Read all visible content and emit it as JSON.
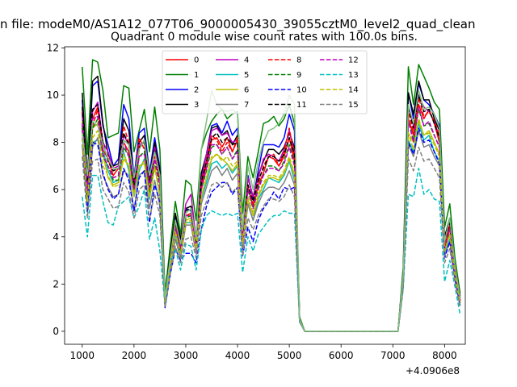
{
  "chart_data": {
    "type": "line",
    "suptitle": "n file: modeM0/AS1A12_077T06_9000005430_39055cztM0_level2_quad_clean",
    "title": "Quadrant 0 module wise count rates with 100.0s bins.",
    "xlabel": "",
    "ylabel": "",
    "x_offset_label": "+4.0906e8",
    "xlim": [
      660,
      8400
    ],
    "ylim": [
      -0.55,
      12.05
    ],
    "xticks": [
      1000,
      2000,
      3000,
      4000,
      5000,
      6000,
      7000,
      8000
    ],
    "yticks": [
      0,
      2,
      4,
      6,
      8,
      10,
      12
    ],
    "grid": false,
    "legend_position": "upper-center",
    "legend_columns": 4,
    "x": [
      1000,
      1100,
      1200,
      1300,
      1400,
      1500,
      1600,
      1700,
      1800,
      1900,
      2000,
      2100,
      2200,
      2300,
      2400,
      2500,
      2600,
      2700,
      2800,
      2900,
      3000,
      3100,
      3200,
      3300,
      3400,
      3500,
      3600,
      3700,
      3800,
      3900,
      4000,
      4100,
      4200,
      4300,
      4400,
      4500,
      4600,
      4700,
      4800,
      4900,
      5000,
      5100,
      5200,
      5300,
      7100,
      7200,
      7300,
      7400,
      7500,
      7600,
      7700,
      7800,
      7900,
      8000,
      8100,
      8200,
      8300
    ],
    "series": [
      {
        "name": "0",
        "color": "#ff0000",
        "dash": "solid",
        "values": [
          9.3,
          6.0,
          9.0,
          9.5,
          7.7,
          7.3,
          6.6,
          6.9,
          8.0,
          7.6,
          6.1,
          7.7,
          8.1,
          6.3,
          7.7,
          6.5,
          1.3,
          3.0,
          4.6,
          3.6,
          4.9,
          5.0,
          3.6,
          6.1,
          7.1,
          8.1,
          8.2,
          7.8,
          8.2,
          7.6,
          8.1,
          4.0,
          6.1,
          5.3,
          6.2,
          6.7,
          7.4,
          7.3,
          7.0,
          7.4,
          8.2,
          7.2,
          0.5,
          0,
          0,
          2.2,
          9.0,
          8.3,
          9.6,
          9.0,
          9.4,
          8.8,
          8.0,
          3.5,
          4.4,
          2.5,
          1.3
        ]
      },
      {
        "name": "1",
        "color": "#008000",
        "dash": "solid",
        "values": [
          11.2,
          7.5,
          11.5,
          11.4,
          10.2,
          8.2,
          8.3,
          8.4,
          10.4,
          10.3,
          7.6,
          8.5,
          9.4,
          7.6,
          9.5,
          7.7,
          1.6,
          3.6,
          5.5,
          4.1,
          6.4,
          6.2,
          4.7,
          7.7,
          8.4,
          8.9,
          9.2,
          9.4,
          9.0,
          9.2,
          9.3,
          5.0,
          7.4,
          6.5,
          7.6,
          8.8,
          8.9,
          9.1,
          8.7,
          9.0,
          9.6,
          8.8,
          0.6,
          0,
          0,
          2.7,
          11.2,
          9.6,
          11.3,
          10.8,
          10.3,
          9.7,
          9.4,
          4.4,
          5.4,
          3.1,
          1.6
        ]
      },
      {
        "name": "2",
        "color": "#0000ff",
        "dash": "solid",
        "values": [
          9.8,
          6.2,
          10.4,
          10.6,
          8.7,
          7.9,
          7.0,
          7.3,
          9.6,
          9.0,
          6.5,
          8.4,
          8.6,
          6.7,
          8.2,
          6.9,
          1.4,
          3.2,
          4.9,
          3.8,
          5.2,
          5.1,
          3.8,
          6.6,
          7.5,
          8.7,
          8.8,
          8.4,
          8.9,
          8.3,
          8.6,
          4.2,
          6.6,
          5.6,
          6.8,
          7.9,
          7.9,
          7.9,
          7.8,
          8.2,
          9.2,
          8.5,
          0.5,
          0,
          0,
          2.4,
          10.1,
          9.0,
          10.5,
          9.8,
          9.6,
          9.2,
          8.7,
          3.8,
          4.8,
          2.8,
          1.4
        ]
      },
      {
        "name": "3",
        "color": "#000000",
        "dash": "solid",
        "values": [
          10.1,
          6.5,
          10.6,
          10.8,
          8.8,
          7.5,
          7.0,
          7.1,
          9.0,
          8.5,
          6.3,
          8.0,
          8.3,
          6.5,
          8.0,
          6.8,
          1.4,
          3.3,
          5.0,
          3.9,
          5.2,
          5.3,
          3.9,
          6.7,
          7.5,
          8.6,
          8.7,
          8.3,
          8.5,
          7.9,
          8.3,
          4.3,
          6.5,
          5.7,
          6.6,
          7.2,
          7.7,
          7.7,
          7.5,
          7.8,
          8.4,
          7.8,
          0.5,
          0,
          0,
          2.5,
          10.1,
          9.2,
          10.6,
          9.8,
          9.8,
          9.0,
          8.5,
          4.0,
          4.8,
          2.8,
          1.5
        ]
      },
      {
        "name": "4",
        "color": "#bf00bf",
        "dash": "solid",
        "values": [
          9.2,
          6.0,
          9.3,
          9.7,
          8.0,
          7.6,
          6.9,
          7.0,
          8.3,
          7.9,
          6.4,
          7.9,
          8.0,
          6.4,
          7.8,
          6.5,
          1.3,
          3.0,
          4.5,
          3.6,
          5.4,
          5.8,
          3.9,
          6.4,
          7.5,
          8.5,
          8.6,
          8.3,
          8.4,
          8.0,
          8.1,
          4.0,
          6.5,
          5.7,
          6.5,
          7.3,
          7.5,
          7.4,
          7.2,
          7.7,
          8.5,
          7.6,
          0.5,
          0,
          0,
          2.3,
          9.5,
          8.7,
          10.0,
          9.5,
          9.3,
          8.9,
          8.2,
          3.8,
          4.5,
          2.6,
          1.3
        ]
      },
      {
        "name": "5",
        "color": "#00bfbf",
        "dash": "solid",
        "values": [
          8.5,
          5.3,
          8.0,
          8.1,
          7.7,
          6.8,
          6.3,
          6.4,
          7.6,
          6.8,
          5.7,
          6.8,
          7.3,
          5.6,
          7.0,
          5.7,
          1.1,
          2.7,
          4.1,
          3.2,
          4.6,
          4.6,
          3.5,
          5.6,
          6.3,
          7.1,
          7.2,
          6.9,
          7.1,
          6.7,
          7.0,
          3.6,
          5.4,
          4.7,
          5.6,
          6.0,
          6.5,
          6.4,
          6.3,
          6.6,
          7.2,
          6.4,
          0.4,
          0,
          0,
          2.0,
          8.1,
          7.6,
          8.8,
          8.1,
          8.3,
          7.6,
          7.2,
          3.3,
          3.9,
          2.3,
          1.2
        ]
      },
      {
        "name": "6",
        "color": "#bfbf00",
        "dash": "solid",
        "values": [
          8.9,
          5.6,
          8.6,
          8.8,
          7.5,
          6.5,
          6.2,
          6.3,
          7.3,
          7.0,
          5.8,
          7.0,
          7.1,
          5.7,
          7.0,
          5.8,
          1.1,
          2.8,
          4.3,
          3.4,
          4.7,
          4.8,
          3.5,
          5.7,
          6.5,
          7.3,
          7.5,
          7.3,
          7.1,
          6.8,
          7.1,
          3.7,
          5.6,
          4.9,
          5.7,
          6.2,
          6.5,
          6.5,
          6.4,
          6.7,
          7.3,
          6.6,
          0.4,
          0,
          0,
          2.1,
          8.4,
          8.0,
          8.9,
          8.3,
          8.5,
          8.0,
          7.5,
          3.4,
          4.1,
          2.4,
          1.2
        ]
      },
      {
        "name": "7",
        "color": "#808080",
        "dash": "solid",
        "values": [
          7.9,
          5.2,
          7.8,
          8.2,
          6.6,
          6.1,
          5.7,
          5.8,
          6.8,
          6.6,
          5.1,
          6.6,
          6.8,
          5.2,
          6.4,
          5.3,
          1.1,
          2.6,
          3.9,
          3.1,
          4.5,
          4.5,
          3.3,
          5.4,
          6.1,
          6.8,
          7.0,
          6.6,
          6.9,
          6.4,
          6.7,
          3.5,
          5.4,
          4.7,
          5.4,
          5.9,
          6.1,
          6.1,
          6.0,
          6.3,
          6.8,
          6.2,
          0.4,
          0,
          0,
          1.9,
          7.9,
          7.4,
          8.5,
          7.8,
          7.9,
          7.4,
          7.0,
          3.2,
          3.8,
          2.2,
          1.1
        ]
      },
      {
        "name": "8",
        "color": "#ff0000",
        "dash": "dashed",
        "values": [
          8.6,
          5.8,
          8.7,
          9.4,
          7.6,
          7.4,
          6.5,
          6.6,
          8.7,
          8.0,
          6.2,
          8.2,
          7.7,
          6.0,
          7.4,
          6.3,
          1.2,
          2.9,
          4.5,
          3.5,
          4.9,
          4.9,
          3.8,
          6.2,
          7.2,
          8.3,
          8.1,
          7.6,
          8.0,
          7.6,
          8.2,
          4.0,
          6.2,
          5.4,
          6.3,
          7.0,
          7.4,
          7.5,
          7.0,
          7.6,
          8.6,
          7.4,
          0.5,
          0,
          0,
          2.3,
          9.3,
          8.4,
          9.9,
          9.1,
          9.3,
          8.9,
          8.3,
          3.6,
          4.5,
          2.6,
          1.3
        ]
      },
      {
        "name": "9",
        "color": "#008000",
        "dash": "dashed",
        "values": [
          8.7,
          5.7,
          8.6,
          9.0,
          7.4,
          7.0,
          6.4,
          6.4,
          7.8,
          7.4,
          6.0,
          7.4,
          7.6,
          5.9,
          7.2,
          6.1,
          1.2,
          2.9,
          4.4,
          3.4,
          4.8,
          4.9,
          3.6,
          6.0,
          6.8,
          7.8,
          7.9,
          7.5,
          7.8,
          7.3,
          7.7,
          3.9,
          6.0,
          5.2,
          6.1,
          6.6,
          7.0,
          7.0,
          6.8,
          7.2,
          7.9,
          7.1,
          0.5,
          0,
          0,
          2.2,
          8.9,
          8.1,
          9.4,
          8.7,
          8.8,
          8.3,
          7.8,
          3.5,
          4.3,
          2.5,
          1.3
        ]
      },
      {
        "name": "10",
        "color": "#0000ff",
        "dash": "dashed",
        "values": [
          8.2,
          5.0,
          8.0,
          7.9,
          6.7,
          6.0,
          5.6,
          5.8,
          6.9,
          6.4,
          5.1,
          6.5,
          6.8,
          4.6,
          6.2,
          5.5,
          1.0,
          2.4,
          3.5,
          3.0,
          3.3,
          3.3,
          2.9,
          4.3,
          5.3,
          5.9,
          6.1,
          6.3,
          6.3,
          5.8,
          6.1,
          3.2,
          4.4,
          3.8,
          4.7,
          5.2,
          5.5,
          5.9,
          5.6,
          6.1,
          6.0,
          6.1,
          0.4,
          0,
          0,
          1.9,
          8.0,
          7.5,
          8.6,
          8.0,
          8.1,
          7.6,
          7.1,
          3.1,
          3.8,
          2.2,
          1.1
        ]
      },
      {
        "name": "11",
        "color": "#000000",
        "dash": "dashed",
        "values": [
          9.5,
          6.3,
          9.4,
          9.6,
          8.0,
          7.2,
          6.8,
          6.9,
          8.4,
          7.9,
          6.2,
          7.8,
          8.0,
          6.3,
          7.7,
          6.4,
          1.3,
          3.1,
          4.7,
          3.6,
          5.1,
          5.2,
          3.8,
          6.3,
          7.2,
          8.2,
          8.4,
          8.0,
          8.2,
          7.9,
          8.0,
          4.1,
          6.2,
          5.5,
          6.4,
          6.9,
          7.4,
          7.4,
          7.2,
          7.5,
          8.2,
          7.5,
          0.5,
          0,
          0,
          2.3,
          9.5,
          8.6,
          10.0,
          9.3,
          9.4,
          8.8,
          8.2,
          3.8,
          4.6,
          2.7,
          1.4
        ]
      },
      {
        "name": "12",
        "color": "#bf00bf",
        "dash": "dashed",
        "values": [
          8.8,
          5.9,
          9.0,
          9.1,
          7.5,
          7.0,
          6.5,
          6.6,
          8.0,
          7.4,
          6.0,
          7.4,
          7.5,
          6.1,
          7.3,
          6.1,
          1.2,
          2.9,
          4.4,
          3.5,
          4.9,
          4.9,
          3.6,
          6.0,
          6.9,
          7.9,
          7.9,
          7.5,
          7.8,
          7.3,
          7.6,
          3.9,
          6.0,
          5.2,
          6.0,
          6.6,
          6.9,
          6.9,
          6.8,
          7.1,
          7.8,
          7.0,
          0.5,
          0,
          0,
          2.2,
          8.9,
          8.0,
          9.5,
          8.7,
          8.9,
          8.3,
          7.8,
          3.5,
          4.3,
          2.5,
          1.3
        ]
      },
      {
        "name": "13",
        "color": "#00bfbf",
        "dash": "dashed",
        "values": [
          5.7,
          4.0,
          6.6,
          6.6,
          5.5,
          4.6,
          4.5,
          5.3,
          5.5,
          5.7,
          4.8,
          5.3,
          6.0,
          3.9,
          4.8,
          3.4,
          1.1,
          2.9,
          3.5,
          2.6,
          3.7,
          3.6,
          2.6,
          4.3,
          4.9,
          5.1,
          5.0,
          4.9,
          5.0,
          4.9,
          5.0,
          2.5,
          4.0,
          3.4,
          4.1,
          4.4,
          4.7,
          4.9,
          4.9,
          5.1,
          5.0,
          5.0,
          0.4,
          0,
          0,
          1.8,
          5.8,
          5.7,
          6.9,
          5.8,
          6.0,
          5.6,
          5.5,
          2.1,
          3.0,
          1.9,
          0.7
        ]
      },
      {
        "name": "14",
        "color": "#bfbf00",
        "dash": "dashed",
        "values": [
          8.2,
          5.5,
          8.2,
          8.5,
          7.0,
          6.6,
          6.1,
          6.2,
          7.5,
          7.0,
          5.7,
          7.0,
          7.2,
          5.7,
          6.9,
          5.8,
          1.2,
          2.8,
          4.2,
          3.3,
          4.6,
          4.7,
          3.5,
          5.7,
          6.5,
          7.4,
          7.5,
          7.2,
          7.4,
          7.0,
          7.2,
          3.7,
          5.7,
          5.0,
          5.8,
          6.3,
          6.6,
          6.6,
          6.5,
          6.8,
          7.4,
          6.7,
          0.5,
          0,
          0,
          2.1,
          8.4,
          7.7,
          9.0,
          8.3,
          8.4,
          7.9,
          7.4,
          3.4,
          4.1,
          2.4,
          1.2
        ]
      },
      {
        "name": "15",
        "color": "#808080",
        "dash": "dashed",
        "values": [
          7.4,
          4.8,
          7.2,
          7.3,
          6.0,
          5.6,
          5.2,
          5.3,
          6.3,
          5.9,
          4.8,
          6.0,
          6.2,
          4.8,
          5.8,
          4.9,
          1.0,
          2.4,
          3.6,
          2.9,
          3.9,
          4.0,
          3.1,
          4.9,
          5.5,
          6.2,
          6.3,
          6.1,
          6.3,
          5.9,
          6.1,
          3.2,
          4.8,
          4.3,
          4.9,
          5.3,
          5.6,
          5.6,
          5.5,
          5.7,
          6.2,
          5.7,
          0.4,
          0,
          0,
          1.8,
          7.3,
          6.8,
          7.8,
          7.2,
          7.3,
          6.9,
          6.5,
          2.9,
          3.5,
          2.1,
          1.0
        ]
      },
      {
        "name": "",
        "color": "#80c080",
        "dash": "solid",
        "values": [
          8.4,
          6.6,
          8.9,
          8.7,
          7.9,
          7.3,
          6.9,
          6.9,
          8.1,
          7.9,
          6.5,
          7.7,
          8.1,
          6.6,
          7.6,
          6.6,
          1.4,
          3.1,
          4.7,
          3.7,
          5.0,
          5.2,
          3.9,
          7.7,
          8.9,
          10.2,
          9.6,
          9.4,
          9.3,
          9.4,
          9.2,
          4.3,
          7.0,
          6.0,
          7.2,
          8.0,
          8.5,
          8.6,
          8.8,
          9.2,
          10.0,
          9.6,
          0.5,
          0,
          0,
          2.4,
          9.6,
          8.8,
          10.2,
          9.4,
          9.5,
          9.2,
          8.6,
          3.8,
          4.8,
          2.8,
          1.4
        ]
      }
    ]
  }
}
